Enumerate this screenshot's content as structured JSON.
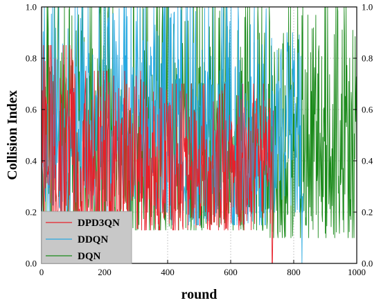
{
  "chart_data": {
    "type": "line",
    "xlabel": "round",
    "ylabel": "Collision Index",
    "xlim": [
      0,
      1000
    ],
    "ylim": [
      0.0,
      1.0
    ],
    "x_ticks": [
      "0",
      "200",
      "400",
      "600",
      "800",
      "1000"
    ],
    "y_ticks": [
      "0.0",
      "0.2",
      "0.4",
      "0.6",
      "0.8",
      "1.0"
    ],
    "right_axis_mirror": true,
    "legend_position": "bottom-left",
    "series": [
      {
        "name": "DPD3QN",
        "color": "#e8202a",
        "x_end": 735,
        "bands": [
          {
            "x_end": 100,
            "typical_range": [
              0.15,
              0.85
            ]
          },
          {
            "x_end": 400,
            "typical_range": [
              0.13,
              0.75
            ]
          },
          {
            "x_end": 735,
            "typical_range": [
              0.13,
              0.7
            ]
          }
        ],
        "final_value": 0.0,
        "dropouts_to_zero": [
          732
        ]
      },
      {
        "name": "DDQN",
        "color": "#29a9e1",
        "x_end": 830,
        "bands": [
          {
            "x_end": 400,
            "typical_range": [
              0.2,
              1.0
            ]
          },
          {
            "x_end": 720,
            "typical_range": [
              0.15,
              1.0
            ]
          },
          {
            "x_end": 830,
            "typical_range": [
              0.2,
              0.9
            ]
          }
        ],
        "final_value": 0.0,
        "dropouts_to_zero": [
          826
        ]
      },
      {
        "name": "DQN",
        "color": "#1a8a1a",
        "x_end": 1000,
        "bands": [
          {
            "x_end": 700,
            "typical_range": [
              0.13,
              1.0
            ]
          },
          {
            "x_end": 1000,
            "typical_range": [
              0.1,
              1.0
            ]
          }
        ],
        "final_value": 0.1,
        "dropouts_to_zero": []
      }
    ]
  }
}
